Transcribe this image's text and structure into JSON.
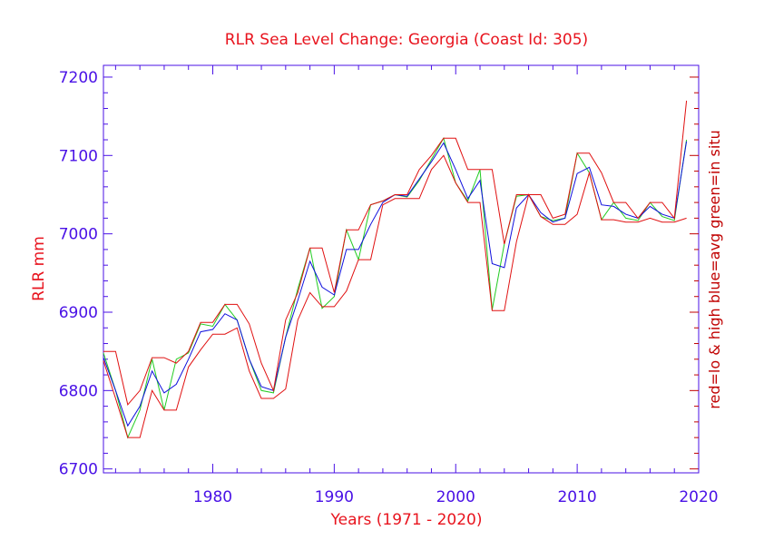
{
  "chart_data": {
    "type": "line",
    "title": "RLR Sea Level Change: Georgia (Coast Id: 305)",
    "xlabel": "Years (1971 - 2020)",
    "ylabel": "RLR mm",
    "right_label": "red=lo & high  blue=avg  green=in situ",
    "xlim": [
      1971,
      2020
    ],
    "ylim": [
      6695,
      7215
    ],
    "x_ticks": [
      1980,
      1990,
      2000,
      2010,
      2020
    ],
    "y_ticks": [
      6700,
      6800,
      6900,
      7000,
      7100,
      7200
    ],
    "x": [
      1971,
      1972,
      1973,
      1974,
      1975,
      1976,
      1977,
      1978,
      1979,
      1980,
      1981,
      1982,
      1983,
      1984,
      1985,
      1986,
      1987,
      1988,
      1989,
      1990,
      1991,
      1992,
      1993,
      1994,
      1995,
      1996,
      1997,
      1998,
      1999,
      2000,
      2001,
      2002,
      2003,
      2004,
      2005,
      2006,
      2007,
      2008,
      2009,
      2010,
      2011,
      2012,
      2013,
      2014,
      2015,
      2016,
      2017,
      2018,
      2019
    ],
    "series": [
      {
        "name": "in situ",
        "color": "#22cc22",
        "values": [
          6848,
          6800,
          6740,
          6775,
          6840,
          6775,
          6840,
          6848,
          6885,
          6882,
          6910,
          6890,
          6840,
          6800,
          6797,
          6868,
          6930,
          6982,
          6905,
          6920,
          7005,
          6967,
          7037,
          7042,
          7050,
          7047,
          7068,
          7095,
          7122,
          7065,
          7042,
          7082,
          6903,
          6987,
          7048,
          7050,
          7022,
          7017,
          7020,
          7103,
          7078,
          7018,
          7040,
          7020,
          7017,
          7040,
          7022,
          7017,
          7120
        ]
      },
      {
        "name": "avg",
        "color": "#1010dd",
        "values": [
          6842,
          6800,
          6755,
          6780,
          6825,
          6797,
          6808,
          6840,
          6875,
          6878,
          6898,
          6890,
          6840,
          6805,
          6800,
          6868,
          6915,
          6965,
          6932,
          6922,
          6980,
          6980,
          7012,
          7040,
          7050,
          7048,
          7070,
          7092,
          7116,
          7082,
          7045,
          7068,
          6962,
          6957,
          7033,
          7050,
          7027,
          7015,
          7020,
          7077,
          7085,
          7037,
          7035,
          7025,
          7020,
          7035,
          7025,
          7020,
          7118
        ]
      },
      {
        "name": "lo",
        "color": "#e01010",
        "values": [
          6838,
          6790,
          6740,
          6740,
          6800,
          6775,
          6775,
          6830,
          6852,
          6872,
          6872,
          6880,
          6825,
          6790,
          6790,
          6802,
          6890,
          6925,
          6907,
          6907,
          6927,
          6967,
          6967,
          7037,
          7045,
          7045,
          7045,
          7082,
          7100,
          7065,
          7040,
          7040,
          6902,
          6902,
          6990,
          7050,
          7022,
          7012,
          7012,
          7025,
          7078,
          7018,
          7018,
          7015,
          7015,
          7020,
          7015,
          7015,
          7020
        ]
      },
      {
        "name": "high",
        "color": "#e01010",
        "values": [
          6850,
          6850,
          6782,
          6800,
          6842,
          6842,
          6835,
          6850,
          6887,
          6887,
          6910,
          6910,
          6885,
          6835,
          6800,
          6890,
          6925,
          6982,
          6982,
          6925,
          7005,
          7005,
          7037,
          7042,
          7050,
          7050,
          7082,
          7100,
          7122,
          7122,
          7082,
          7082,
          7082,
          6987,
          7050,
          7050,
          7050,
          7020,
          7025,
          7103,
          7103,
          7078,
          7040,
          7040,
          7020,
          7040,
          7040,
          7020,
          7170
        ]
      }
    ]
  }
}
